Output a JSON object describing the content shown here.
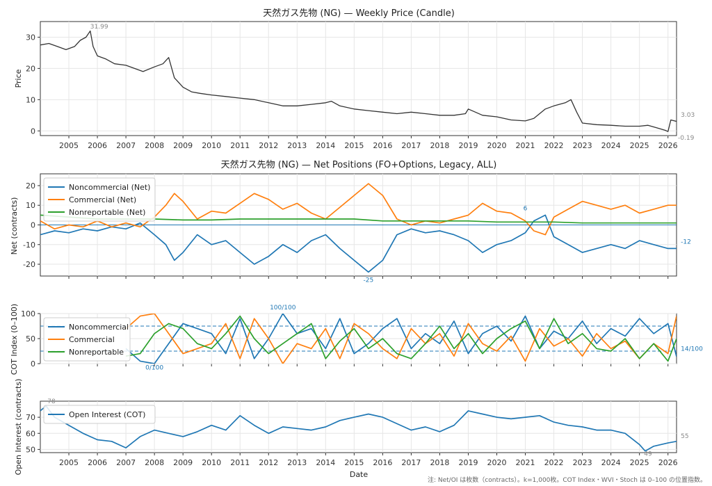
{
  "footnote": "注: Net/OI は枚数（contracts）。k=1,000枚。COT Index・WVI・Stoch は 0–100 の位置指数。",
  "colors": {
    "price": "#333333",
    "noncommercial": "#1f77b4",
    "commercial": "#ff7f0e",
    "nonreportable": "#2ca02c",
    "grid": "#e6e6e6",
    "annotation": "#888888"
  },
  "chart_data": [
    {
      "type": "line",
      "title": "天然ガス先物 (NG) — Weekly Price (Candle)",
      "ylabel": "Price",
      "xlabel": "",
      "xlim": [
        2004.0,
        2026.3
      ],
      "ylim": [
        -1.5,
        35
      ],
      "yticks": [
        "0",
        "10",
        "20",
        "30"
      ],
      "xticks": [
        "2005",
        "2006",
        "2007",
        "2008",
        "2009",
        "2010",
        "2011",
        "2012",
        "2013",
        "2014",
        "2015",
        "2016",
        "2017",
        "2018",
        "2019",
        "2020",
        "2021",
        "2022",
        "2023",
        "2024",
        "2025",
        "2026"
      ],
      "grid": true,
      "series": [
        {
          "x": [
            2004.0,
            2004.3,
            2004.6,
            2004.9,
            2005.2,
            2005.4,
            2005.6,
            2005.75,
            2005.85,
            2006.0,
            2006.3,
            2006.6,
            2007.0,
            2007.3,
            2007.6,
            2008.0,
            2008.3,
            2008.5,
            2008.7,
            2009.0,
            2009.3,
            2009.6,
            2010.0,
            2010.5,
            2011.0,
            2011.5,
            2012.0,
            2012.5,
            2013.0,
            2013.5,
            2014.0,
            2014.2,
            2014.5,
            2015.0,
            2015.5,
            2016.0,
            2016.5,
            2017.0,
            2017.5,
            2018.0,
            2018.5,
            2018.9,
            2019.0,
            2019.5,
            2020.0,
            2020.5,
            2021.0,
            2021.3,
            2021.7,
            2022.0,
            2022.4,
            2022.6,
            2022.8,
            2023.0,
            2023.5,
            2024.0,
            2024.5,
            2025.0,
            2025.3,
            2025.6,
            2025.9,
            2026.0,
            2026.1,
            2026.3
          ],
          "y": [
            27.5,
            28,
            27,
            26,
            27,
            29,
            30,
            32,
            27,
            24,
            23,
            21.5,
            21,
            20,
            19,
            20.5,
            21.5,
            23.5,
            17,
            14,
            12.5,
            12,
            11.5,
            11,
            10.5,
            10,
            9,
            8,
            8,
            8.5,
            9,
            9.5,
            8,
            7,
            6.5,
            6,
            5.5,
            6,
            5.5,
            5,
            5,
            5.5,
            7,
            5,
            4.5,
            3.5,
            3.2,
            4,
            7,
            8,
            9,
            10,
            6,
            2.5,
            2,
            1.8,
            1.5,
            1.5,
            1.8,
            1,
            0.2,
            -0.2,
            3.5,
            3.03
          ]
        }
      ],
      "annotations": [
        "31.99",
        "3.03",
        "-0.19"
      ]
    },
    {
      "type": "line",
      "title": "天然ガス先物 (NG) — Net Positions (FO+Options, Legacy, ALL)",
      "ylabel": "Net (contracts)",
      "xlabel": "",
      "xlim": [
        2004.0,
        2026.3
      ],
      "ylim": [
        -26,
        26
      ],
      "yticks": [
        "-20",
        "-10",
        "0",
        "10",
        "20"
      ],
      "grid": true,
      "legend": "top-left",
      "series": [
        {
          "name": "Noncommercial (Net)",
          "x": [
            2004.0,
            2004.5,
            2005.0,
            2005.5,
            2006.0,
            2006.5,
            2007.0,
            2007.5,
            2008.0,
            2008.4,
            2008.7,
            2009.0,
            2009.5,
            2010.0,
            2010.5,
            2011.0,
            2011.5,
            2012.0,
            2012.5,
            2013.0,
            2013.5,
            2014.0,
            2014.5,
            2015.0,
            2015.5,
            2016.0,
            2016.5,
            2017.0,
            2017.5,
            2018.0,
            2018.5,
            2019.0,
            2019.5,
            2020.0,
            2020.5,
            2021.0,
            2021.3,
            2021.7,
            2022.0,
            2022.5,
            2023.0,
            2023.5,
            2024.0,
            2024.5,
            2025.0,
            2025.5,
            2026.0,
            2026.3
          ],
          "y": [
            -5,
            -3,
            -4,
            -2,
            -3,
            -1,
            -2,
            1,
            -5,
            -10,
            -18,
            -14,
            -5,
            -10,
            -8,
            -14,
            -20,
            -16,
            -10,
            -14,
            -8,
            -5,
            -12,
            -18,
            -24,
            -18,
            -5,
            -2,
            -4,
            -3,
            -5,
            -8,
            -14,
            -10,
            -8,
            -4,
            2,
            5,
            -6,
            -10,
            -14,
            -12,
            -10,
            -12,
            -8,
            -10,
            -12,
            -12
          ]
        },
        {
          "name": "Commercial (Net)",
          "x": [
            2004.0,
            2004.5,
            2005.0,
            2005.5,
            2006.0,
            2006.5,
            2007.0,
            2007.5,
            2008.0,
            2008.4,
            2008.7,
            2009.0,
            2009.5,
            2010.0,
            2010.5,
            2011.0,
            2011.5,
            2012.0,
            2012.5,
            2013.0,
            2013.5,
            2014.0,
            2014.5,
            2015.0,
            2015.5,
            2016.0,
            2016.5,
            2017.0,
            2017.5,
            2018.0,
            2018.5,
            2019.0,
            2019.5,
            2020.0,
            2020.5,
            2021.0,
            2021.3,
            2021.7,
            2022.0,
            2022.5,
            2023.0,
            2023.5,
            2024.0,
            2024.5,
            2025.0,
            2025.5,
            2026.0,
            2026.3
          ],
          "y": [
            2,
            -2,
            0,
            -1,
            2,
            -1,
            1,
            -1,
            4,
            10,
            16,
            12,
            3,
            7,
            6,
            11,
            16,
            13,
            8,
            11,
            6,
            3,
            9,
            15,
            21,
            15,
            3,
            0,
            2,
            1,
            3,
            5,
            11,
            7,
            6,
            2,
            -3,
            -5,
            4,
            8,
            12,
            10,
            8,
            10,
            6,
            8,
            10,
            10
          ]
        },
        {
          "name": "Nonreportable (Net)",
          "x": [
            2004.0,
            2005.0,
            2006.0,
            2007.0,
            2008.0,
            2009.0,
            2010.0,
            2011.0,
            2012.0,
            2013.0,
            2014.0,
            2015.0,
            2016.0,
            2017.0,
            2018.0,
            2019.0,
            2020.0,
            2021.0,
            2022.0,
            2023.0,
            2024.0,
            2025.0,
            2026.0,
            2026.3
          ],
          "y": [
            5,
            4,
            3,
            3,
            3,
            2.5,
            2.5,
            3,
            3,
            3,
            3,
            3,
            2,
            2,
            2,
            2,
            1.5,
            1.5,
            1.5,
            1,
            1,
            1,
            1,
            1
          ]
        }
      ],
      "annotations": [
        "6",
        "-12",
        "-25"
      ]
    },
    {
      "type": "line",
      "title": "",
      "ylabel": "COT Index (0–100)",
      "xlabel": "",
      "xlim": [
        2004.0,
        2026.3
      ],
      "ylim": [
        0,
        100
      ],
      "yticks": [
        "0",
        "50",
        "100"
      ],
      "reference_lines": [
        25,
        75
      ],
      "grid": true,
      "legend": "top-left",
      "series": [
        {
          "name": "Noncommercial",
          "x": [
            2007.0,
            2007.5,
            2008.0,
            2008.5,
            2009.0,
            2009.5,
            2010.0,
            2010.5,
            2011.0,
            2011.5,
            2012.0,
            2012.5,
            2013.0,
            2013.5,
            2014.0,
            2014.5,
            2015.0,
            2015.5,
            2016.0,
            2016.5,
            2017.0,
            2017.5,
            2018.0,
            2018.5,
            2019.0,
            2019.5,
            2020.0,
            2020.5,
            2021.0,
            2021.5,
            2022.0,
            2022.5,
            2023.0,
            2023.5,
            2024.0,
            2024.5,
            2025.0,
            2025.5,
            2026.0,
            2026.3
          ],
          "y": [
            30,
            5,
            0,
            40,
            80,
            70,
            60,
            20,
            90,
            10,
            50,
            100,
            60,
            70,
            30,
            90,
            20,
            40,
            70,
            90,
            30,
            60,
            40,
            85,
            20,
            60,
            75,
            45,
            95,
            30,
            65,
            50,
            85,
            40,
            70,
            55,
            90,
            60,
            80,
            14
          ]
        },
        {
          "name": "Commercial",
          "x": [
            2007.0,
            2007.5,
            2008.0,
            2008.5,
            2009.0,
            2009.5,
            2010.0,
            2010.5,
            2011.0,
            2011.5,
            2012.0,
            2012.5,
            2013.0,
            2013.5,
            2014.0,
            2014.5,
            2015.0,
            2015.5,
            2016.0,
            2016.5,
            2017.0,
            2017.5,
            2018.0,
            2018.5,
            2019.0,
            2019.5,
            2020.0,
            2020.5,
            2021.0,
            2021.5,
            2022.0,
            2022.5,
            2023.0,
            2023.5,
            2024.0,
            2024.5,
            2025.0,
            2025.5,
            2026.0,
            2026.3
          ],
          "y": [
            70,
            95,
            100,
            60,
            20,
            30,
            40,
            80,
            10,
            90,
            50,
            0,
            40,
            30,
            70,
            10,
            80,
            60,
            30,
            10,
            70,
            40,
            60,
            15,
            80,
            40,
            25,
            55,
            5,
            70,
            35,
            50,
            15,
            60,
            30,
            45,
            10,
            40,
            20,
            95
          ]
        },
        {
          "name": "Nonreportable",
          "x": [
            2007.0,
            2007.5,
            2008.0,
            2008.5,
            2009.0,
            2009.5,
            2010.0,
            2010.5,
            2011.0,
            2011.5,
            2012.0,
            2012.5,
            2013.0,
            2013.5,
            2014.0,
            2014.5,
            2015.0,
            2015.5,
            2016.0,
            2016.5,
            2017.0,
            2017.5,
            2018.0,
            2018.5,
            2019.0,
            2019.5,
            2020.0,
            2020.5,
            2021.0,
            2021.5,
            2022.0,
            2022.5,
            2023.0,
            2023.5,
            2024.0,
            2024.5,
            2025.0,
            2025.5,
            2026.0,
            2026.3
          ],
          "y": [
            15,
            20,
            60,
            80,
            70,
            40,
            30,
            60,
            95,
            50,
            20,
            40,
            60,
            80,
            10,
            45,
            70,
            30,
            50,
            20,
            10,
            40,
            75,
            30,
            60,
            20,
            50,
            70,
            85,
            30,
            90,
            40,
            60,
            30,
            25,
            50,
            10,
            40,
            5,
            50
          ]
        }
      ],
      "annotations": [
        "100/100",
        "0/100",
        "14/100"
      ]
    },
    {
      "type": "line",
      "title": "",
      "ylabel": "Open Interest (contracts)",
      "xlabel": "Date",
      "xlim": [
        2004.0,
        2026.3
      ],
      "ylim": [
        48,
        80
      ],
      "yticks": [
        "50",
        "60",
        "70"
      ],
      "xticks": [
        "2005",
        "2006",
        "2007",
        "2008",
        "2009",
        "2010",
        "2011",
        "2012",
        "2013",
        "2014",
        "2015",
        "2016",
        "2017",
        "2018",
        "2019",
        "2020",
        "2021",
        "2022",
        "2023",
        "2024",
        "2025",
        "2026"
      ],
      "grid": true,
      "legend": "top-left",
      "series": [
        {
          "name": "Open Interest (COT)",
          "x": [
            2004.0,
            2004.2,
            2004.5,
            2005.0,
            2005.5,
            2006.0,
            2006.5,
            2007.0,
            2007.5,
            2008.0,
            2008.5,
            2009.0,
            2009.5,
            2010.0,
            2010.5,
            2011.0,
            2011.5,
            2012.0,
            2012.5,
            2013.0,
            2013.5,
            2014.0,
            2014.5,
            2015.0,
            2015.5,
            2016.0,
            2016.5,
            2017.0,
            2017.5,
            2018.0,
            2018.5,
            2019.0,
            2019.5,
            2020.0,
            2020.5,
            2021.0,
            2021.5,
            2022.0,
            2022.5,
            2023.0,
            2023.5,
            2024.0,
            2024.5,
            2025.0,
            2025.2,
            2025.5,
            2026.0,
            2026.3
          ],
          "y": [
            74,
            77,
            70,
            65,
            60,
            56,
            55,
            51,
            58,
            62,
            60,
            58,
            61,
            65,
            62,
            71,
            65,
            60,
            64,
            63,
            62,
            64,
            68,
            70,
            72,
            70,
            66,
            62,
            64,
            61,
            65,
            74,
            72,
            70,
            69,
            70,
            71,
            67,
            65,
            64,
            62,
            62,
            60,
            53,
            49,
            52,
            54,
            55
          ]
        }
      ],
      "annotations": [
        "78",
        "49",
        "55"
      ]
    }
  ]
}
